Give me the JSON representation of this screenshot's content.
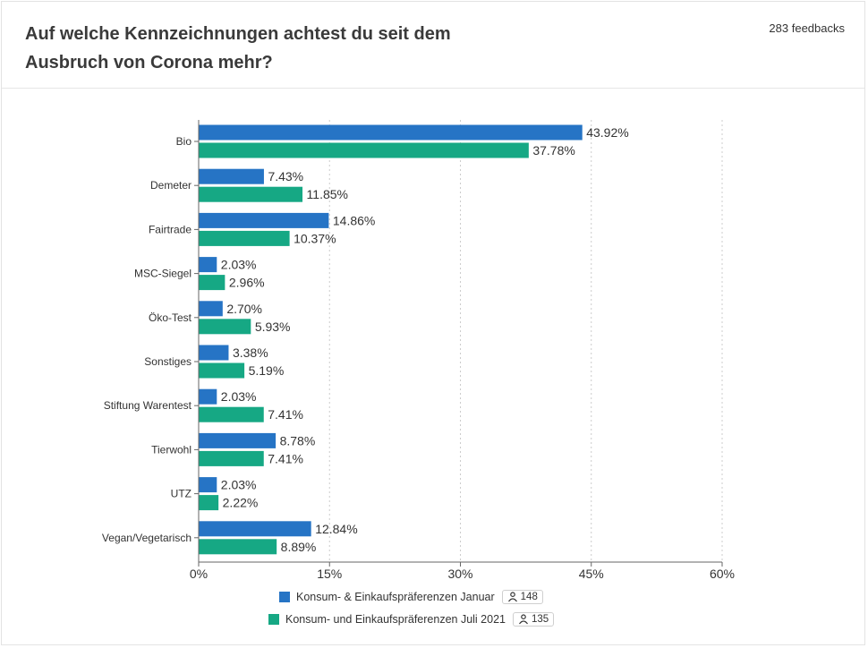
{
  "header": {
    "title": "Auf welche Kennzeichnungen achtest du seit dem Ausbruch von Corona mehr?",
    "feedback_count": "283 feedbacks"
  },
  "colors": {
    "series1": "#2674c5",
    "series2": "#16a884",
    "grid": "#cccccc",
    "axis": "#666666"
  },
  "legend": {
    "icon": "person-icon",
    "items": [
      {
        "label": "Konsum- & Einkaufspräferenzen Januar",
        "count": "148"
      },
      {
        "label": "Konsum- und Einkaufspräferenzen Juli 2021",
        "count": "135"
      }
    ]
  },
  "chart_data": {
    "type": "bar",
    "orientation": "horizontal",
    "title": "Auf welche Kennzeichnungen achtest du seit dem Ausbruch von Corona mehr?",
    "xlabel": "",
    "ylabel": "",
    "xlim": [
      0,
      60
    ],
    "x_ticks": [
      "0%",
      "15%",
      "30%",
      "45%",
      "60%"
    ],
    "x_tick_values": [
      0,
      15,
      30,
      45,
      60
    ],
    "grid": true,
    "legend_position": "bottom",
    "categories": [
      "Bio",
      "Demeter",
      "Fairtrade",
      "MSC-Siegel",
      "Öko-Test",
      "Sonstiges",
      "Stiftung Warentest",
      "Tierwohl",
      "UTZ",
      "Vegan/Vegetarisch"
    ],
    "series": [
      {
        "name": "Konsum- & Einkaufspräferenzen Januar",
        "values": [
          43.92,
          7.43,
          14.86,
          2.03,
          2.7,
          3.38,
          2.03,
          8.78,
          2.03,
          12.84
        ],
        "labels": [
          "43.92%",
          "7.43%",
          "14.86%",
          "2.03%",
          "2.70%",
          "3.38%",
          "2.03%",
          "8.78%",
          "2.03%",
          "12.84%"
        ]
      },
      {
        "name": "Konsum- und Einkaufspräferenzen Juli 2021",
        "values": [
          37.78,
          11.85,
          10.37,
          2.96,
          5.93,
          5.19,
          7.41,
          7.41,
          2.22,
          8.89
        ],
        "labels": [
          "37.78%",
          "11.85%",
          "10.37%",
          "2.96%",
          "5.93%",
          "5.19%",
          "7.41%",
          "7.41%",
          "2.22%",
          "8.89%"
        ]
      }
    ]
  }
}
